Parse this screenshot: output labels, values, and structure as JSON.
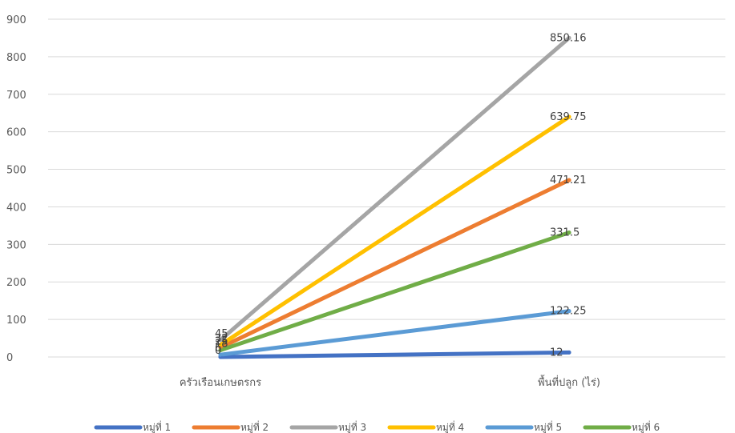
{
  "chart_data": {
    "type": "line",
    "title": "",
    "xlabel": "",
    "ylabel": "",
    "categories": [
      "ครัวเรือนเกษตรกร",
      "พื้นที่ปลูก (ไร่)"
    ],
    "ylim": [
      0,
      900
    ],
    "yticks": [
      0,
      100,
      200,
      300,
      400,
      500,
      600,
      700,
      800,
      900
    ],
    "grid": true,
    "legend_position": "bottom",
    "series": [
      {
        "name": "หมู่ที่ 1",
        "values": [
          0,
          12
        ],
        "labels": [
          "0",
          "12"
        ],
        "color": "#4472C4"
      },
      {
        "name": "หมู่ที่ 2",
        "values": [
          25,
          471.21
        ],
        "labels": [
          "25",
          "471.21"
        ],
        "color": "#ED7D31"
      },
      {
        "name": "หมู่ที่ 3",
        "values": [
          45,
          850.16
        ],
        "labels": [
          "45",
          "850.16"
        ],
        "color": "#A5A5A5"
      },
      {
        "name": "หมู่ที่ 4",
        "values": [
          32,
          639.75
        ],
        "labels": [
          "32",
          "639.75"
        ],
        "color": "#FFC000"
      },
      {
        "name": "หมู่ที่ 5",
        "values": [
          6,
          122.25
        ],
        "labels": [
          "6",
          "122.25"
        ],
        "color": "#5B9BD5"
      },
      {
        "name": "หมู่ที่ 6",
        "values": [
          18,
          331.5
        ],
        "labels": [
          "18",
          "331.5"
        ],
        "color": "#70AD47"
      }
    ]
  }
}
